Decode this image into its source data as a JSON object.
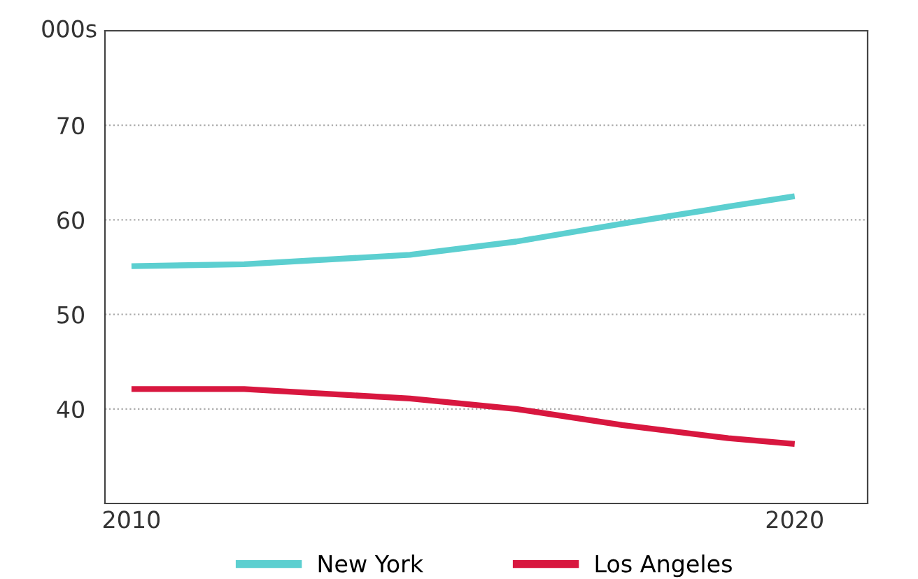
{
  "chart_data": {
    "type": "line",
    "ylabel": "000s",
    "xlim": [
      2009.6,
      2021.1
    ],
    "xticks": [
      2010,
      2020
    ],
    "ylim": [
      30,
      80
    ],
    "yticks": [
      {
        "value": 30,
        "label": null
      },
      40,
      50,
      60,
      70,
      {
        "value": 80,
        "label": null
      }
    ],
    "grid": "y",
    "legend": "bottom",
    "line_style": "solid",
    "series": [
      {
        "name": "New York",
        "color": "#5ccfd0",
        "x": [
          2010,
          2011.7,
          2014.2,
          2015.8,
          2017.4,
          2019,
          2020
        ],
        "values": [
          55.1,
          55.3,
          56.3,
          57.7,
          59.6,
          61.4,
          62.5
        ]
      },
      {
        "name": "Los Angeles",
        "color": "#d8173f",
        "x": [
          2010,
          2011.7,
          2014.2,
          2015.8,
          2017.4,
          2019,
          2020
        ],
        "values": [
          42.1,
          42.1,
          41.1,
          40.0,
          38.3,
          36.9,
          36.3
        ]
      }
    ]
  }
}
